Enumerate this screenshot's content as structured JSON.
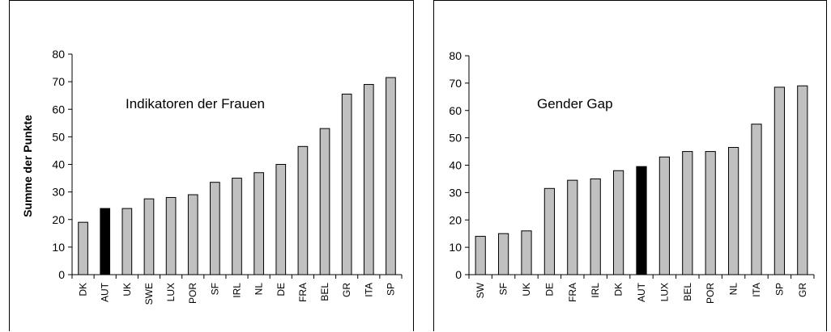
{
  "chart_data": [
    {
      "type": "bar",
      "ylabel": "Summe der Punkte",
      "annotation": "Indikatoren der Frauen",
      "ylim": [
        0,
        80
      ],
      "yticks": [
        0,
        10,
        20,
        30,
        40,
        50,
        60,
        70,
        80
      ],
      "categories": [
        "DK",
        "AUT",
        "UK",
        "SWE",
        "LUX",
        "POR",
        "SF",
        "IRL",
        "NL",
        "DE",
        "FRA",
        "BEL",
        "GR",
        "ITA",
        "SP"
      ],
      "values": [
        19,
        24,
        24,
        27.5,
        28,
        29,
        33.5,
        35,
        37,
        40,
        46.5,
        53,
        65.5,
        69,
        71.5
      ],
      "highlight_category": "AUT",
      "colors": {
        "bar": "#c0c0c0",
        "highlight": "#000000"
      },
      "grid": false
    },
    {
      "type": "bar",
      "ylabel": "",
      "annotation": "Gender Gap",
      "ylim": [
        0,
        80
      ],
      "yticks": [
        0,
        10,
        20,
        30,
        40,
        50,
        60,
        70,
        80
      ],
      "categories": [
        "SW",
        "SF",
        "UK",
        "DE",
        "FRA",
        "IRL",
        "DK",
        "AUT",
        "LUX",
        "BEL",
        "POR",
        "NL",
        "ITA",
        "SP",
        "GR"
      ],
      "values": [
        14,
        15,
        16,
        31.5,
        34.5,
        35,
        38,
        39.5,
        43,
        45,
        45,
        46.5,
        55,
        68.5,
        69
      ],
      "highlight_category": "AUT",
      "colors": {
        "bar": "#c0c0c0",
        "highlight": "#000000"
      },
      "grid": false
    }
  ]
}
